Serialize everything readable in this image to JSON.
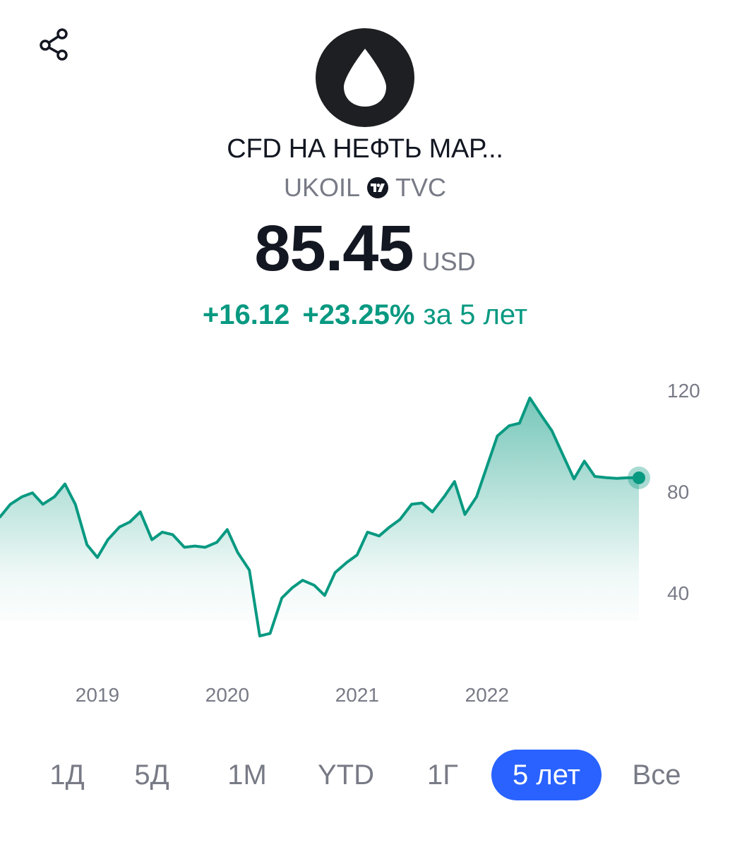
{
  "header": {
    "share_icon": "share-icon",
    "logo_icon": "oil-drop-icon",
    "title": "CFD НА НЕФТЬ МАР...",
    "ticker": "UKOIL",
    "exchange_icon": "tradingview-icon",
    "exchange": "TVC"
  },
  "quote": {
    "price": "85.45",
    "currency": "USD",
    "change_abs": "+16.12",
    "change_pct": "+23.25%",
    "change_period": "за 5 лет"
  },
  "colors": {
    "up": "#089981",
    "accent": "#2962ff",
    "muted": "#787b86",
    "text": "#131722"
  },
  "chart_data": {
    "type": "area",
    "title": "",
    "xlabel": "",
    "ylabel": "",
    "x_ticks": [
      "2019",
      "2020",
      "2021",
      "2022"
    ],
    "x_tick_values": [
      2019.0,
      2020.0,
      2021.0,
      2022.0
    ],
    "y_ticks": [
      40,
      80,
      120
    ],
    "xlim": [
      2018.25,
      2023.5
    ],
    "ylim": [
      15,
      125
    ],
    "y_axis_position": "right",
    "grid": false,
    "last_value": 85.45,
    "series": [
      {
        "x": [
          2018.25,
          2018.33,
          2018.42,
          2018.5,
          2018.58,
          2018.67,
          2018.75,
          2018.79,
          2018.83,
          2018.92,
          2019.0,
          2019.08,
          2019.17,
          2019.25,
          2019.33,
          2019.42,
          2019.5,
          2019.58,
          2019.67,
          2019.75,
          2019.83,
          2019.92,
          2020.0,
          2020.08,
          2020.17,
          2020.25,
          2020.33,
          2020.42,
          2020.5,
          2020.58,
          2020.67,
          2020.75,
          2020.83,
          2020.92,
          2021.0,
          2021.08,
          2021.17,
          2021.25,
          2021.33,
          2021.42,
          2021.5,
          2021.58,
          2021.67,
          2021.75,
          2021.83,
          2021.92,
          2022.0,
          2022.08,
          2022.17,
          2022.25,
          2022.33,
          2022.42,
          2022.5,
          2022.58,
          2022.67,
          2022.75,
          2022.83,
          2022.92,
          2023.0,
          2023.08,
          2023.17
        ],
        "values": [
          70,
          75,
          78,
          79.5,
          75,
          78,
          83,
          79,
          75,
          59,
          54,
          61,
          66,
          68,
          72,
          61,
          64,
          63,
          58,
          58.5,
          58,
          60,
          65,
          56,
          49,
          23,
          24,
          38,
          42,
          45,
          43,
          39,
          48,
          52,
          55,
          64,
          62.5,
          66,
          69,
          75,
          75.5,
          72,
          78,
          84,
          71,
          78,
          90,
          102,
          106,
          107,
          117,
          110,
          104,
          95,
          85,
          92,
          86,
          85.5,
          85.2,
          85.45,
          85.45
        ]
      }
    ]
  },
  "ranges": {
    "items": [
      {
        "label": "1Д",
        "active": false
      },
      {
        "label": "5Д",
        "active": false
      },
      {
        "label": "1М",
        "active": false
      },
      {
        "label": "YTD",
        "active": false
      },
      {
        "label": "1Г",
        "active": false
      },
      {
        "label": "5 лет",
        "active": true
      },
      {
        "label": "Все",
        "active": false
      }
    ]
  }
}
